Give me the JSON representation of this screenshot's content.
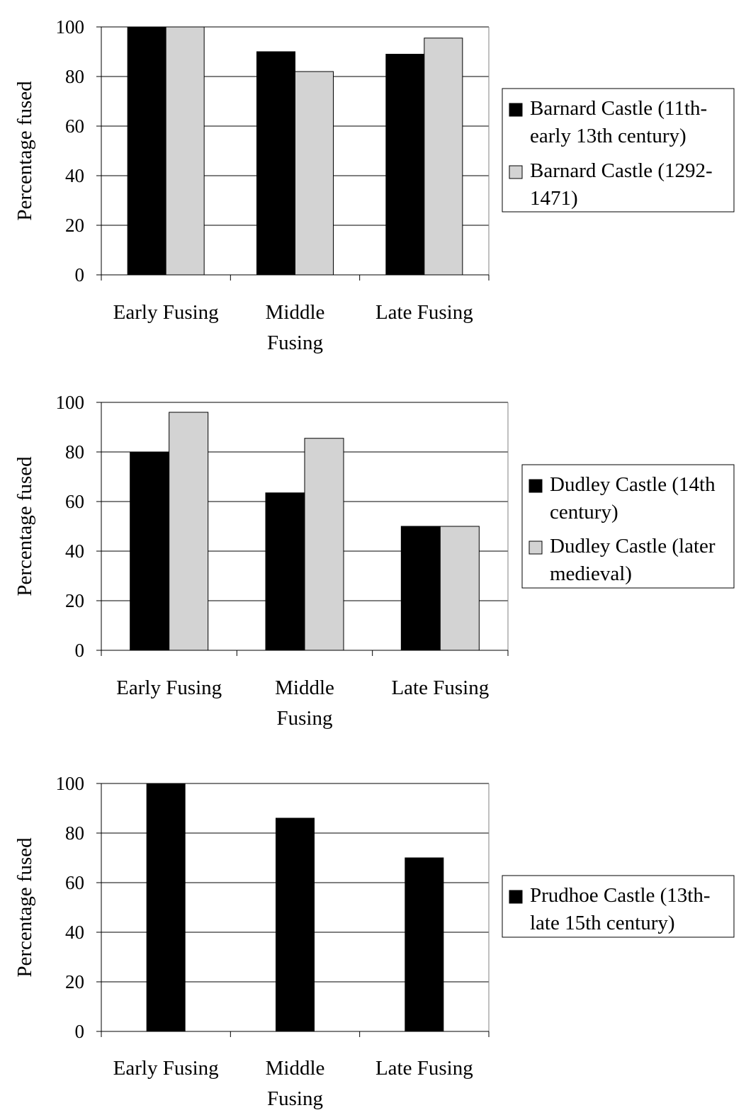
{
  "chart_data": [
    {
      "type": "bar",
      "categories": [
        "Early Fusing",
        "Middle Fusing",
        "Late Fusing"
      ],
      "series": [
        {
          "name": "Barnard Castle (11th-early 13th century)",
          "values": [
            100,
            90,
            89
          ],
          "color": "#000000"
        },
        {
          "name": "Barnard Castle (1292-1471)",
          "values": [
            100,
            82,
            95.5
          ],
          "color": "#d3d3d3"
        }
      ],
      "ylabel": "Percentage fused",
      "ylim": [
        0,
        100
      ],
      "yticks": [
        0,
        20,
        40,
        60,
        80,
        100
      ],
      "grid": true,
      "legend": "right"
    },
    {
      "type": "bar",
      "categories": [
        "Early Fusing",
        "Middle Fusing",
        "Late Fusing"
      ],
      "series": [
        {
          "name": "Dudley Castle (14th century)",
          "values": [
            80,
            63.5,
            50
          ],
          "color": "#000000"
        },
        {
          "name": "Dudley Castle (later medieval)",
          "values": [
            96,
            85.5,
            50
          ],
          "color": "#d3d3d3"
        }
      ],
      "ylabel": "Percentage fused",
      "ylim": [
        0,
        100
      ],
      "yticks": [
        0,
        20,
        40,
        60,
        80,
        100
      ],
      "grid": true,
      "legend": "right"
    },
    {
      "type": "bar",
      "categories": [
        "Early Fusing",
        "Middle Fusing",
        "Late Fusing"
      ],
      "series": [
        {
          "name": "Prudhoe Castle (13th-late 15th century)",
          "values": [
            100,
            86,
            70
          ],
          "color": "#000000"
        }
      ],
      "ylabel": "Percentage fused",
      "ylim": [
        0,
        100
      ],
      "yticks": [
        0,
        20,
        40,
        60,
        80,
        100
      ],
      "grid": true,
      "legend": "right"
    }
  ]
}
